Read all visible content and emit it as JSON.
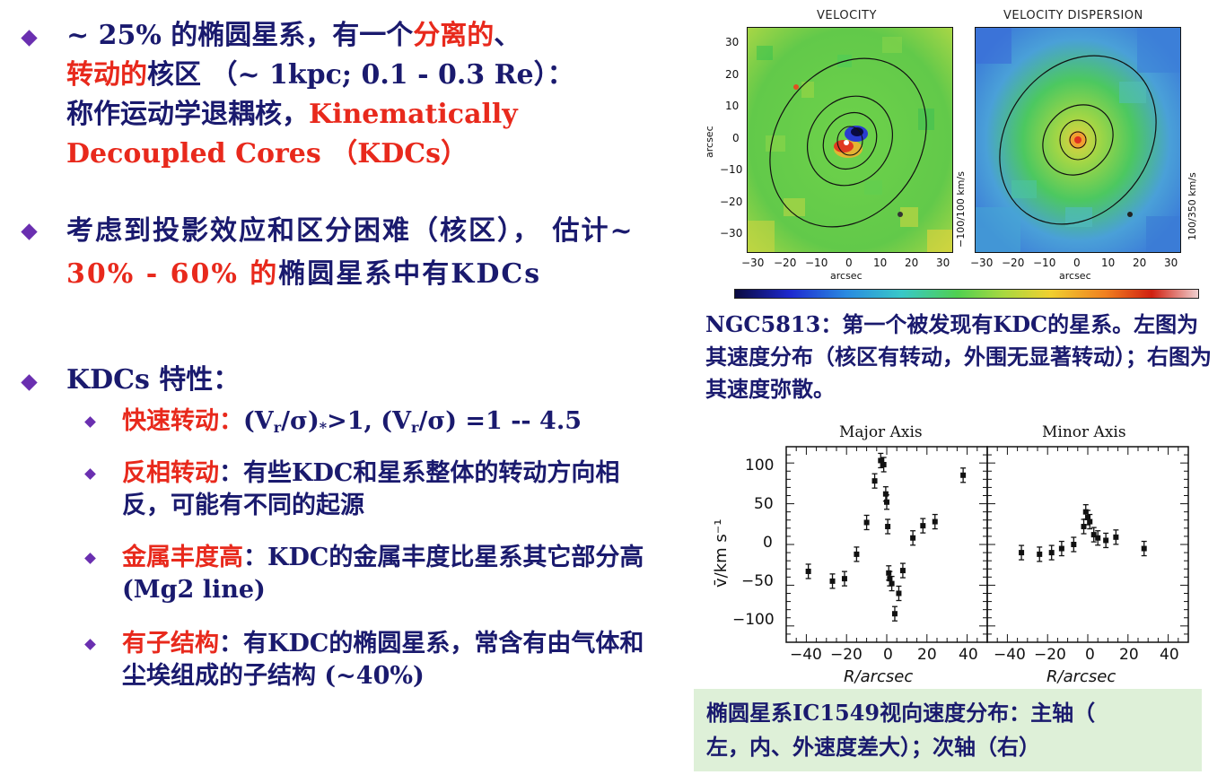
{
  "bullets": {
    "b1": {
      "p1": "~ 25% 的椭圆星系，有一个",
      "p2": "分离的",
      "p3": "、",
      "p4": "转动的",
      "p5": "核区 （~ 1kpc; 0.1 - 0.3 Re）：",
      "p6": "称作运动学退耦核，",
      "p7": "Kinematically Decoupled Cores",
      "p8": " （KDCs）"
    },
    "b2": {
      "p1": "考虑到投影效应和区分困难（核区）， 估计~ ",
      "p2": "30% - 60% 的",
      "p3": "椭圆星系中有KDCs"
    },
    "b3": {
      "p1": "KDCs 特性："
    },
    "s1": {
      "label": "快速转动：",
      "t1": "(V",
      "t2": "r",
      "t3": "/σ)",
      "t4": "*",
      "t5": ">1, (V",
      "t6": "r",
      "t7": "/σ) =1 -- 4.5"
    },
    "s2": {
      "label": "反相转动",
      "rest": "：有些KDC和星系整体的转动方向相反，可能有不同的起源"
    },
    "s3": {
      "label": "金属丰度高",
      "rest": "：KDC的金属丰度比星系其它部分高 (Mg2 line)"
    },
    "s4": {
      "label": "有子结构",
      "rest": "：有KDC的椭圆星系，常含有由气体和尘埃组成的子结构 (~40%)"
    }
  },
  "maps": {
    "left_title": "VELOCITY",
    "right_title": "VELOCITY DISPERSION",
    "y_ticks": [
      "30",
      "20",
      "10",
      "0",
      "−10",
      "−20",
      "−30"
    ],
    "x_ticks": [
      "−30",
      "−20",
      "−10",
      "0",
      "10",
      "20",
      "30"
    ],
    "axis_label": "arcsec",
    "left_scale": "−100/100 km/s",
    "right_scale": "100/350 km/s"
  },
  "caption1": "NGC5813：第一个被发现有KDC的星系。左图为其速度分布（核区有转动，外围无显著转动）；右图为其速度弥散。",
  "plot": {
    "left_title": "Major Axis",
    "right_title": "Minor Axis",
    "y_ticks": [
      "100",
      "50",
      "0",
      "−50",
      "−100"
    ],
    "left_x_ticks": [
      "−40",
      "−20",
      "0",
      "20",
      "40"
    ],
    "right_x_ticks": [
      "−40",
      "−20",
      "0",
      "20",
      "40"
    ],
    "ylabel": "v̄/km s⁻¹",
    "xlabel": "R/arcsec"
  },
  "chart_data": [
    {
      "type": "scatter",
      "title": "Major Axis",
      "xlabel": "R/arcsec",
      "ylabel": "v̄/km s⁻¹",
      "xlim": [
        -50,
        50
      ],
      "ylim": [
        -120,
        120
      ],
      "points": [
        [
          -39,
          -33
        ],
        [
          -27,
          -45
        ],
        [
          -21,
          -42
        ],
        [
          -15,
          -12
        ],
        [
          -10,
          27
        ],
        [
          -6,
          78
        ],
        [
          -3,
          103
        ],
        [
          -1.5,
          98
        ],
        [
          -0.5,
          62
        ],
        [
          0,
          52
        ],
        [
          0.5,
          22
        ],
        [
          1,
          -35
        ],
        [
          1.5,
          -42
        ],
        [
          2.5,
          -48
        ],
        [
          4,
          -85
        ],
        [
          6,
          -60
        ],
        [
          8,
          -32
        ],
        [
          13,
          8
        ],
        [
          18,
          23
        ],
        [
          24,
          28
        ],
        [
          38,
          85
        ]
      ]
    },
    {
      "type": "scatter",
      "title": "Minor Axis",
      "xlabel": "R/arcsec",
      "xlim": [
        -50,
        50
      ],
      "ylim": [
        -120,
        120
      ],
      "points": [
        [
          -33,
          -10
        ],
        [
          -24,
          -12
        ],
        [
          -18,
          -10
        ],
        [
          -13,
          -5
        ],
        [
          -7,
          0
        ],
        [
          -2,
          22
        ],
        [
          -1,
          40
        ],
        [
          0,
          33
        ],
        [
          1,
          28
        ],
        [
          3,
          12
        ],
        [
          5,
          8
        ],
        [
          9,
          5
        ],
        [
          14,
          9
        ],
        [
          28,
          -5
        ]
      ]
    }
  ]
}
